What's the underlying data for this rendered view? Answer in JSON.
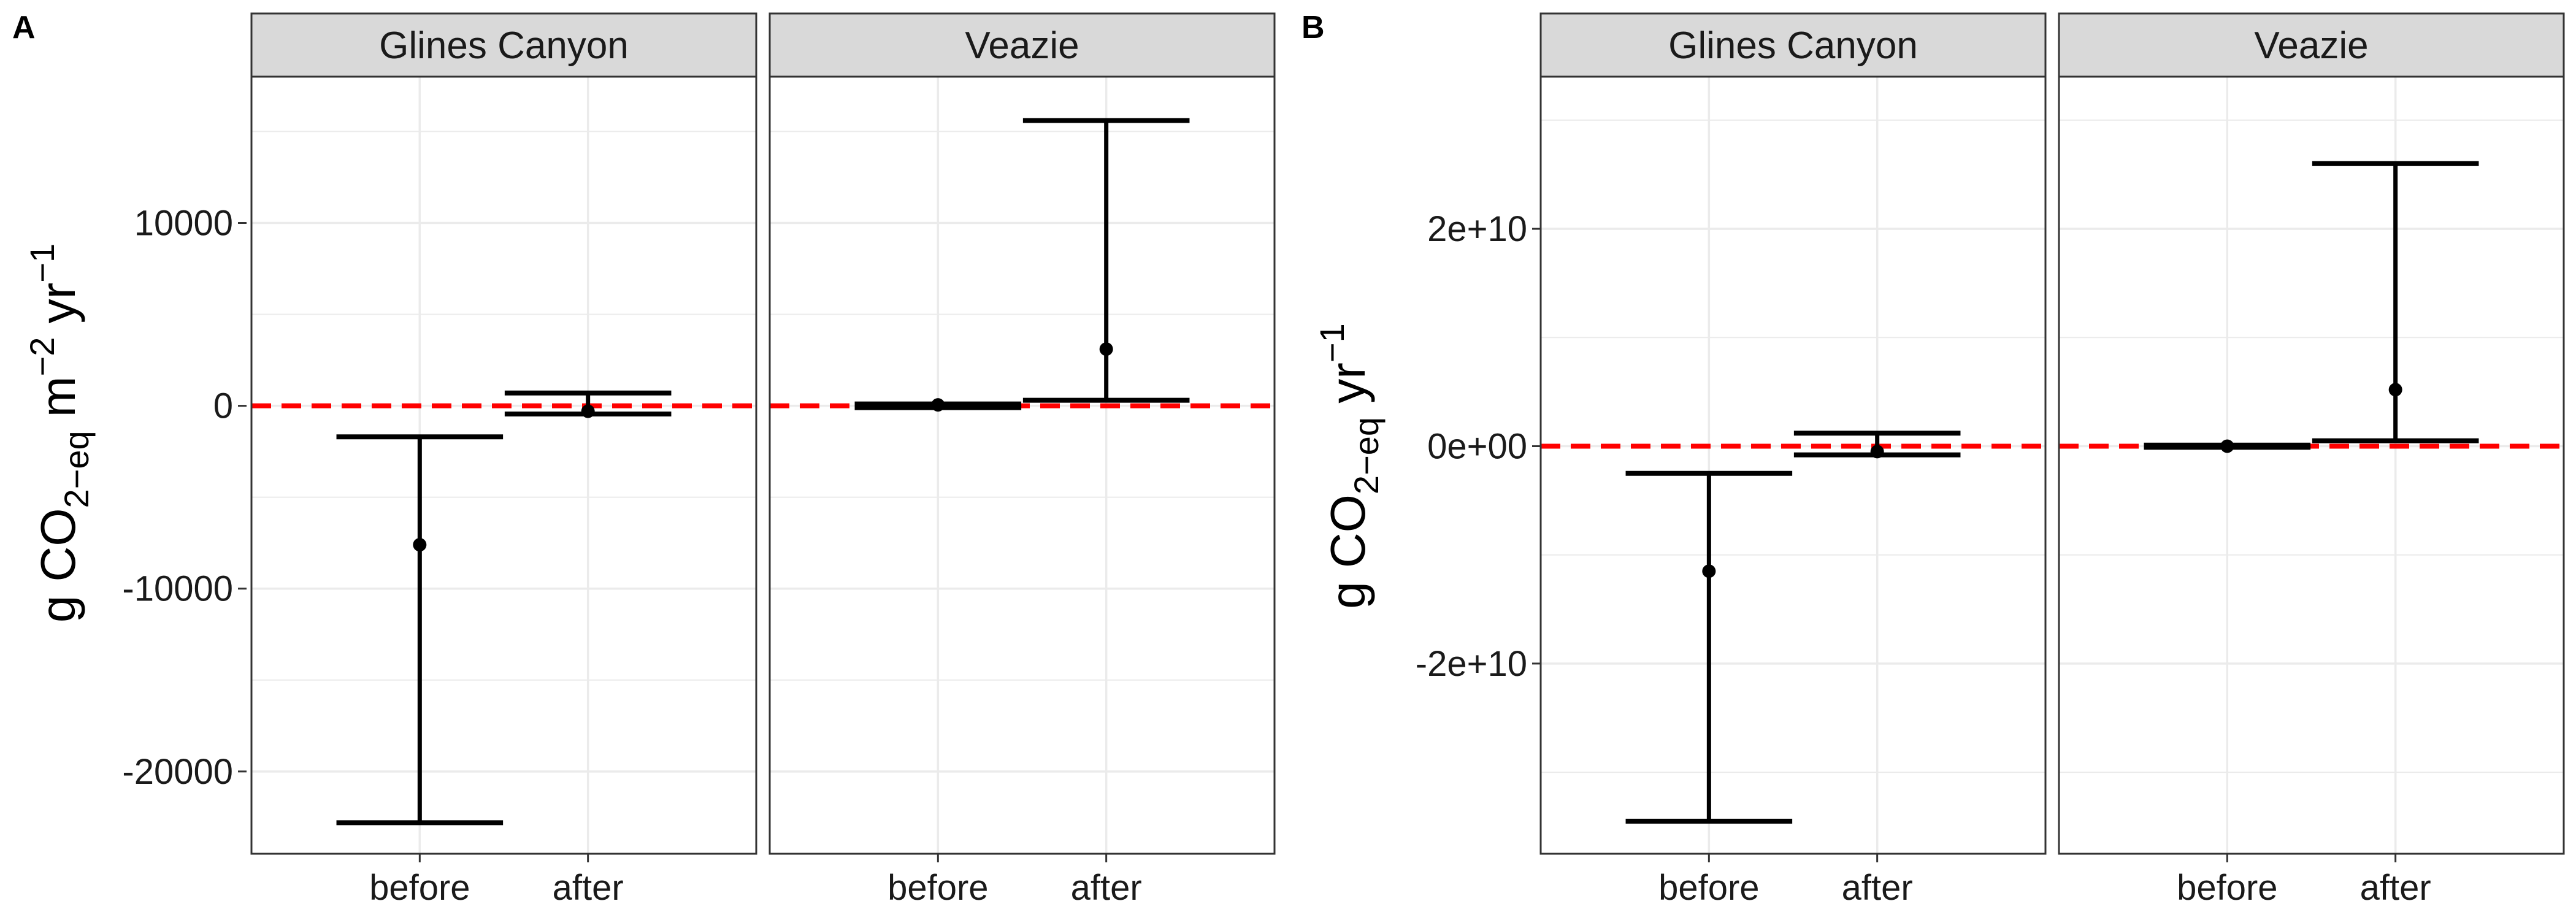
{
  "chart_data": [
    {
      "type": "errorbar",
      "panel_label": "A",
      "ylabel": {
        "main": "g CO",
        "sub": "2−eq",
        "unit1": " m",
        "sup1": "−2",
        "unit2": " yr",
        "sup2": "−1"
      },
      "ylim": [
        -24500,
        18000
      ],
      "yticks": [
        10000,
        0,
        -10000,
        -20000
      ],
      "ytick_labels": [
        "10000",
        "0",
        "-10000",
        "-20000"
      ],
      "reference_line": 0,
      "categories": [
        "before",
        "after"
      ],
      "facets": [
        {
          "name": "Glines Canyon",
          "points": [
            {
              "x": "before",
              "y": -7600,
              "ymin": -22800,
              "ymax": -1700
            },
            {
              "x": "after",
              "y": -300,
              "ymin": -450,
              "ymax": 700
            }
          ]
        },
        {
          "name": "Veazie",
          "points": [
            {
              "x": "before",
              "y": 50,
              "ymin": -100,
              "ymax": 100
            },
            {
              "x": "after",
              "y": 3100,
              "ymin": 300,
              "ymax": 15600
            }
          ]
        }
      ]
    },
    {
      "type": "errorbar",
      "panel_label": "B",
      "ylabel": {
        "main": "g CO",
        "sub": "2−eq",
        "unit1": " yr",
        "sup1": "−1"
      },
      "ylim": [
        -37500000000.0,
        34000000000.0
      ],
      "yticks": [
        20000000000.0,
        0,
        -20000000000.0
      ],
      "ytick_labels": [
        "2e+10",
        "0e+00",
        "-2e+10"
      ],
      "reference_line": 0,
      "categories": [
        "before",
        "after"
      ],
      "facets": [
        {
          "name": "Glines Canyon",
          "points": [
            {
              "x": "before",
              "y": -11500000000.0,
              "ymin": -34500000000.0,
              "ymax": -2500000000.0
            },
            {
              "x": "after",
              "y": -500000000.0,
              "ymin": -800000000.0,
              "ymax": 1200000000.0
            }
          ]
        },
        {
          "name": "Veazie",
          "points": [
            {
              "x": "before",
              "y": 0,
              "ymin": -100000000.0,
              "ymax": 100000000.0
            },
            {
              "x": "after",
              "y": 5200000000.0,
              "ymin": 500000000.0,
              "ymax": 26000000000.0
            }
          ]
        }
      ]
    }
  ],
  "colors": {
    "strip_bg": "#d9d9d9",
    "panel_border": "#333333",
    "grid": "#ebebeb",
    "bars": "#000000",
    "reference_line": "#ff0000"
  }
}
